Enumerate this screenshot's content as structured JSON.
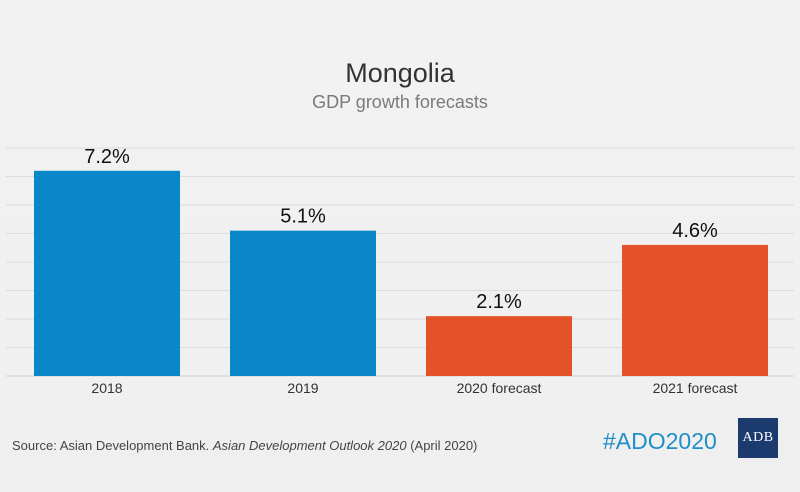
{
  "chart_data": {
    "type": "bar",
    "title": "Mongolia",
    "subtitle": "GDP growth forecasts",
    "categories": [
      "2018",
      "2019",
      "2020 forecast",
      "2021 forecast"
    ],
    "values": [
      7.2,
      5.1,
      2.1,
      4.6
    ],
    "value_labels": [
      "7.2%",
      "5.1%",
      "2.1%",
      "4.6%"
    ],
    "bar_colors": [
      "#0a87c8",
      "#0a87c8",
      "#e4522a",
      "#e4522a"
    ],
    "ylim": [
      0,
      8
    ],
    "grid": true,
    "legend": "none"
  },
  "footer": {
    "source_prefix": "Source: Asian Development Bank. ",
    "source_title": "Asian Development Outlook 2020",
    "source_suffix": " (April 2020)",
    "hashtag": "#ADO2020",
    "logo_text": "ADB"
  },
  "colors": {
    "background": "#f2f2f2",
    "grid": "#dcdcdc",
    "hashtag": "#1f8fc9",
    "logo_bg": "#1b3a6e"
  }
}
